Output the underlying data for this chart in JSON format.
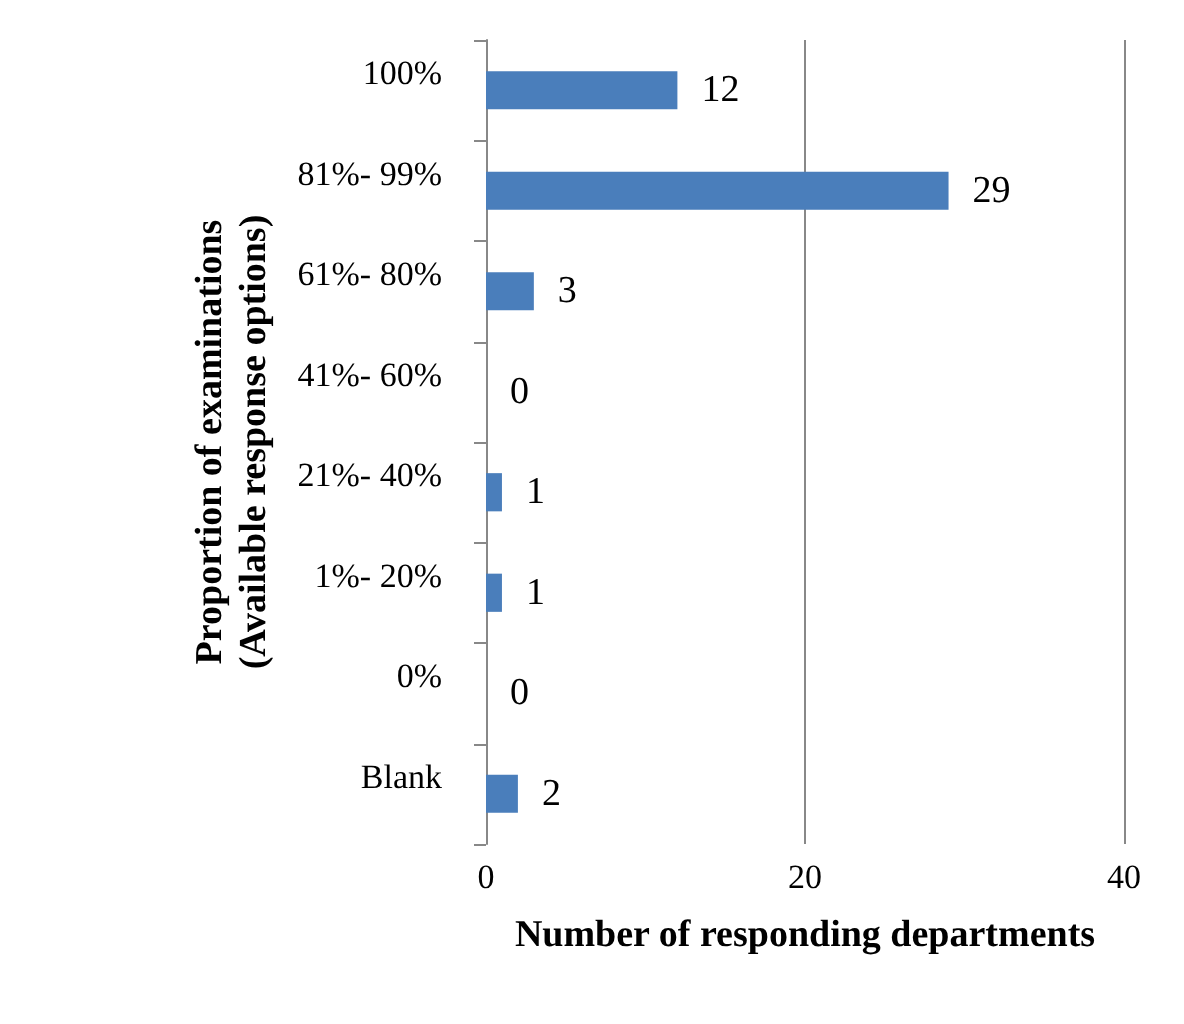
{
  "chart_data": {
    "type": "bar",
    "orientation": "horizontal",
    "xlabel": "Number of responding departments",
    "ylabel": "Proportion of examinations\n(Available response options)",
    "categories": [
      "100%",
      "81%- 99%",
      "61%- 80%",
      "41%- 60%",
      "21%- 40%",
      "1%- 20%",
      "0%",
      "Blank"
    ],
    "values": [
      12,
      29,
      3,
      0,
      1,
      1,
      0,
      2
    ],
    "color": "#4a7ebb",
    "xlim": [
      0,
      40
    ],
    "xticks": [
      0,
      20,
      40
    ],
    "grid": "x",
    "data_labels": true
  }
}
